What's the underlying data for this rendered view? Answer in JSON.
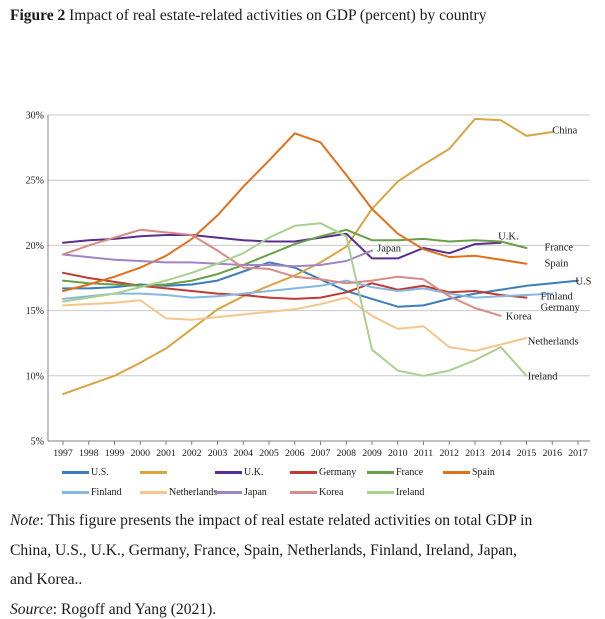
{
  "figure": {
    "label": "Figure 2",
    "title_rest": " Impact of real estate-related activities on GDP (percent) by country"
  },
  "note": {
    "prefix": "Note",
    "line1": ": This figure presents the impact of real estate related activities on total GDP in",
    "line2": "China, U.S., U.K., Germany, France, Spain, Netherlands, Finland, Ireland, Japan,",
    "line3": "and Korea.."
  },
  "source": {
    "prefix": "Source",
    "text": ": Rogoff and Yang (2021)."
  },
  "chart_data": {
    "type": "line",
    "x_start_year": 1997,
    "x": [
      1997,
      1998,
      1999,
      2000,
      2001,
      2002,
      2003,
      2004,
      2005,
      2006,
      2007,
      2008,
      2009,
      2010,
      2011,
      2012,
      2013,
      2014,
      2015,
      2016,
      2017
    ],
    "ylim": [
      5,
      30
    ],
    "y_ticks": [
      {
        "value": 5,
        "label": "5%"
      },
      {
        "value": 10,
        "label": "10%"
      },
      {
        "value": 15,
        "label": "15%"
      },
      {
        "value": 20,
        "label": "20%"
      },
      {
        "value": 25,
        "label": "25%"
      },
      {
        "value": 30,
        "label": "30%"
      }
    ],
    "grid": true,
    "legend_position": "bottom",
    "grid_color": "#c8c8c8",
    "axis_color": "#808080",
    "series": [
      {
        "name": "U.S.",
        "legend_label": "U.S.",
        "color": "#3B7DBD",
        "values": [
          16.7,
          16.7,
          16.8,
          17.0,
          16.9,
          17.0,
          17.3,
          18.0,
          18.7,
          18.3,
          17.4,
          16.5,
          15.9,
          15.3,
          15.4,
          15.9,
          16.3,
          16.6,
          16.9,
          17.1,
          17.3
        ]
      },
      {
        "name": "China",
        "legend_label": "",
        "color": "#D9A441",
        "values": [
          8.6,
          9.3,
          10.0,
          11.0,
          12.1,
          13.6,
          15.1,
          16.1,
          16.9,
          17.7,
          18.7,
          19.9,
          22.8,
          24.9,
          26.2,
          27.4,
          29.7,
          29.6,
          28.4,
          28.7
        ]
      },
      {
        "name": "U.K.",
        "legend_label": "U.K.",
        "color": "#5C2D91",
        "values": [
          20.2,
          20.4,
          20.5,
          20.7,
          20.8,
          20.8,
          20.6,
          20.4,
          20.3,
          20.3,
          20.6,
          20.9,
          19.0,
          19.0,
          19.8,
          19.4,
          20.1,
          20.2
        ]
      },
      {
        "name": "Germany",
        "legend_label": "Germany",
        "color": "#BE3B31",
        "values": [
          17.9,
          17.5,
          17.2,
          16.9,
          16.7,
          16.5,
          16.3,
          16.2,
          16.0,
          15.9,
          16.0,
          16.4,
          17.1,
          16.6,
          16.9,
          16.4,
          16.5,
          16.2,
          16.0
        ]
      },
      {
        "name": "France",
        "legend_label": "France",
        "color": "#67A046",
        "values": [
          17.3,
          17.1,
          17.0,
          16.9,
          17.0,
          17.3,
          17.8,
          18.5,
          19.3,
          20.1,
          20.7,
          21.2,
          20.4,
          20.4,
          20.5,
          20.3,
          20.4,
          20.3,
          19.8
        ]
      },
      {
        "name": "Spain",
        "legend_label": "Spain",
        "color": "#E1701B",
        "values": [
          16.5,
          17.0,
          17.6,
          18.3,
          19.2,
          20.5,
          22.3,
          24.5,
          26.5,
          28.6,
          27.9,
          25.4,
          22.8,
          20.9,
          19.7,
          19.1,
          19.2,
          18.9,
          18.6
        ]
      },
      {
        "name": "Finland",
        "legend_label": "Finland",
        "color": "#85B7E0",
        "values": [
          15.9,
          16.1,
          16.3,
          16.3,
          16.2,
          16.0,
          16.1,
          16.3,
          16.5,
          16.7,
          16.9,
          17.3,
          16.8,
          16.5,
          16.7,
          16.3,
          16.0,
          16.1,
          16.2,
          16.3
        ]
      },
      {
        "name": "Netherlands",
        "legend_label": "Netherlands",
        "color": "#F4C68B",
        "values": [
          15.4,
          15.5,
          15.6,
          15.8,
          14.4,
          14.3,
          14.5,
          14.7,
          14.9,
          15.1,
          15.5,
          16.0,
          14.6,
          13.6,
          13.8,
          12.2,
          11.9,
          12.4,
          12.9
        ]
      },
      {
        "name": "Japan",
        "legend_label": "Japan",
        "color": "#A184C4",
        "values": [
          19.3,
          19.1,
          18.9,
          18.8,
          18.7,
          18.7,
          18.6,
          18.5,
          18.5,
          18.4,
          18.5,
          18.8,
          19.6
        ]
      },
      {
        "name": "Korea",
        "legend_label": "Korea",
        "color": "#D98B83",
        "values": [
          19.3,
          20.0,
          20.6,
          21.2,
          21.0,
          20.8,
          19.6,
          18.3,
          18.2,
          17.6,
          17.4,
          17.1,
          17.3,
          17.6,
          17.4,
          16.1,
          15.2,
          14.6
        ]
      },
      {
        "name": "Ireland",
        "legend_label": "Ireland",
        "color": "#A9D18E",
        "values": [
          15.7,
          16.0,
          16.3,
          16.8,
          17.3,
          17.9,
          18.6,
          19.4,
          20.6,
          21.5,
          21.7,
          20.7,
          12.0,
          10.4,
          10.0,
          10.4,
          11.2,
          12.2,
          10.0
        ]
      }
    ],
    "annotations": [
      {
        "label": "China",
        "year": 2016.0,
        "value": 28.85
      },
      {
        "label": "U.K.",
        "year": 2013.9,
        "value": 20.72
      },
      {
        "label": "France",
        "year": 2015.7,
        "value": 19.87
      },
      {
        "label": "Spain",
        "year": 2015.7,
        "value": 18.65
      },
      {
        "label": "U.S",
        "year": 2016.9,
        "value": 17.27
      },
      {
        "label": "Finland",
        "year": 2015.55,
        "value": 16.12
      },
      {
        "label": "Germany",
        "year": 2015.55,
        "value": 15.28
      },
      {
        "label": "Korea",
        "year": 2014.2,
        "value": 14.59
      },
      {
        "label": "Netherlands",
        "year": 2015.05,
        "value": 12.67
      },
      {
        "label": "Ireland",
        "year": 2015.05,
        "value": 9.99
      },
      {
        "label": "Japan",
        "year": 2009.2,
        "value": 19.8
      }
    ]
  }
}
